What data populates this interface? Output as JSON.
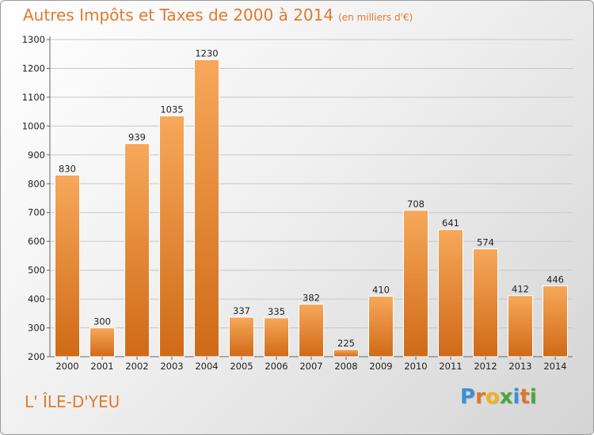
{
  "header": {
    "title": "Autres Impôts et Taxes de 2000 à 2014",
    "subtitle": "(en milliers d'€)"
  },
  "footer": {
    "commune": "L' ÎLE-D'YEU",
    "logo_letters": [
      "P",
      "r",
      "o",
      "x",
      "i",
      "t",
      "i"
    ],
    "logo_colors": [
      "#3a8fd8",
      "#e0752e",
      "#f2b21c",
      "#4aa83a",
      "#3a8fd8",
      "#e0752e",
      "#4aa83a"
    ]
  },
  "colors": {
    "bar_light": "#f7a85a",
    "bar_dark": "#cf6a17",
    "accent": "#e07a2e",
    "grid": "#c8c8c8"
  },
  "chart_data": {
    "type": "bar",
    "title": "Autres Impôts et Taxes de 2000 à 2014",
    "subtitle": "(en milliers d'€)",
    "xlabel": "",
    "ylabel": "",
    "categories": [
      "2000",
      "2001",
      "2002",
      "2003",
      "2004",
      "2005",
      "2006",
      "2007",
      "2008",
      "2009",
      "2010",
      "2011",
      "2012",
      "2013",
      "2014"
    ],
    "values": [
      830,
      300,
      939,
      1035,
      1230,
      337,
      335,
      382,
      225,
      410,
      708,
      641,
      574,
      412,
      446
    ],
    "ylim": [
      200,
      1300
    ],
    "yticks": [
      200,
      300,
      400,
      500,
      600,
      700,
      800,
      900,
      1000,
      1100,
      1200,
      1300
    ],
    "grid": true,
    "data_labels": true
  }
}
